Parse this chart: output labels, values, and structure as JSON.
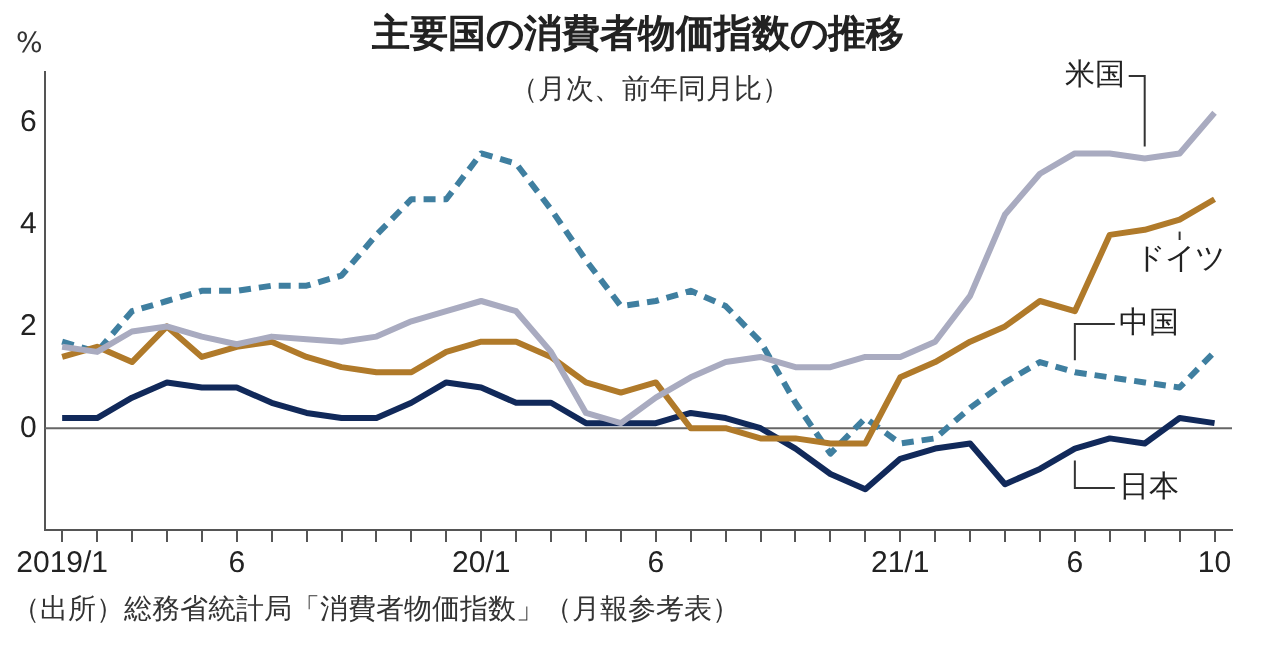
{
  "chart_data": {
    "type": "line",
    "title": "主要国の消費者物価指数の推移",
    "subtitle": "（月次、前年同月比）",
    "ylabel": "%",
    "annotations": [
      "（出所）総務省統計局「消費者物価指数」（月報参考表）"
    ],
    "categories": [
      "2019/1",
      null,
      null,
      null,
      null,
      "6",
      null,
      null,
      null,
      null,
      null,
      null,
      "20/1",
      null,
      null,
      null,
      null,
      "6",
      null,
      null,
      null,
      null,
      null,
      null,
      "21/1",
      null,
      null,
      null,
      null,
      "6",
      null,
      null,
      null,
      "10"
    ],
    "series": [
      {
        "name": "米国",
        "color": "#a9abc0",
        "values": [
          1.6,
          1.5,
          1.9,
          2.0,
          1.8,
          1.65,
          1.8,
          1.75,
          1.7,
          1.8,
          2.1,
          2.3,
          2.5,
          2.3,
          1.5,
          0.3,
          0.1,
          0.6,
          1.0,
          1.3,
          1.4,
          1.2,
          1.2,
          1.4,
          1.4,
          1.7,
          2.6,
          4.2,
          5.0,
          5.4,
          5.4,
          5.3,
          5.4,
          6.2
        ]
      },
      {
        "name": "ドイツ",
        "color": "#b07a2a",
        "values": [
          1.4,
          1.6,
          1.3,
          2.0,
          1.4,
          1.6,
          1.7,
          1.4,
          1.2,
          1.1,
          1.1,
          1.5,
          1.7,
          1.7,
          1.4,
          0.9,
          0.7,
          0.9,
          0.0,
          0.0,
          -0.2,
          -0.2,
          -0.3,
          -0.3,
          1.0,
          1.3,
          1.7,
          2.0,
          2.5,
          2.3,
          3.8,
          3.9,
          4.1,
          4.5
        ]
      },
      {
        "name": "中国",
        "color": "#3f7fa0",
        "line_style": "dashed",
        "values": [
          1.7,
          1.5,
          2.3,
          2.5,
          2.7,
          2.7,
          2.8,
          2.8,
          3.0,
          3.8,
          4.5,
          4.5,
          5.4,
          5.2,
          4.3,
          3.3,
          2.4,
          2.5,
          2.7,
          2.4,
          1.7,
          0.5,
          -0.5,
          0.2,
          -0.3,
          -0.2,
          0.4,
          0.9,
          1.3,
          1.1,
          1.0,
          0.9,
          0.8,
          1.5
        ]
      },
      {
        "name": "日本",
        "color": "#11295a",
        "values": [
          0.2,
          0.2,
          0.6,
          0.9,
          0.8,
          0.8,
          0.5,
          0.3,
          0.2,
          0.2,
          0.5,
          0.9,
          0.8,
          0.5,
          0.5,
          0.1,
          0.1,
          0.1,
          0.3,
          0.2,
          0.0,
          -0.4,
          -0.9,
          -1.2,
          -0.6,
          -0.4,
          -0.3,
          -1.1,
          -0.8,
          -0.4,
          -0.2,
          -0.3,
          0.2,
          0.1
        ]
      }
    ],
    "ylim": [
      -2,
      7
    ],
    "yticks": [
      0,
      2,
      4,
      6
    ],
    "ref_lines": [
      {
        "axis": "y",
        "value": 0,
        "color": "#666666"
      }
    ],
    "grid": false,
    "legend": false,
    "marker": "none",
    "line_style": "solid"
  }
}
